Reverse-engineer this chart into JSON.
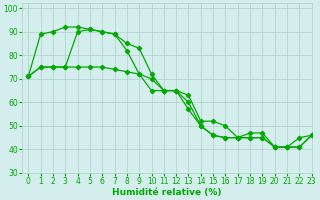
{
  "xlabel": "Humidité relative (%)",
  "xlim": [
    -0.5,
    23
  ],
  "ylim": [
    30,
    102
  ],
  "yticks": [
    30,
    40,
    50,
    60,
    70,
    80,
    90,
    100
  ],
  "xticks": [
    0,
    1,
    2,
    3,
    4,
    5,
    6,
    7,
    8,
    9,
    10,
    11,
    12,
    13,
    14,
    15,
    16,
    17,
    18,
    19,
    20,
    21,
    22,
    23
  ],
  "bg_color": "#d4eeed",
  "grid_color": "#b8d4d0",
  "line_color": "#00aa00",
  "line1": {
    "x": [
      0,
      1,
      2,
      3,
      4,
      5,
      6,
      7,
      8,
      9,
      10,
      11,
      12,
      13,
      14,
      15,
      16,
      17,
      18,
      19,
      20,
      21,
      22,
      23
    ],
    "y": [
      71,
      89,
      90,
      92,
      92,
      91,
      90,
      89,
      85,
      83,
      72,
      65,
      65,
      60,
      50,
      46,
      45,
      45,
      47,
      47,
      41,
      41,
      45,
      46
    ]
  },
  "line2": {
    "x": [
      0,
      1,
      2,
      3,
      4,
      5,
      6,
      7,
      8,
      9,
      10,
      11,
      12,
      13,
      14,
      15,
      16,
      17,
      18,
      19,
      20,
      21,
      22,
      23
    ],
    "y": [
      71,
      75,
      75,
      75,
      75,
      75,
      75,
      74,
      73,
      72,
      70,
      65,
      65,
      57,
      50,
      46,
      45,
      45,
      45,
      45,
      41,
      41,
      41,
      46
    ]
  },
  "line3": {
    "x": [
      0,
      1,
      2,
      3,
      4,
      5,
      6,
      7,
      8,
      9,
      10,
      11,
      12,
      13,
      14,
      15,
      16,
      17,
      18,
      19,
      20,
      21,
      22,
      23
    ],
    "y": [
      71,
      75,
      75,
      75,
      90,
      91,
      90,
      89,
      82,
      72,
      65,
      65,
      65,
      63,
      52,
      52,
      50,
      45,
      45,
      45,
      41,
      41,
      41,
      46
    ]
  }
}
